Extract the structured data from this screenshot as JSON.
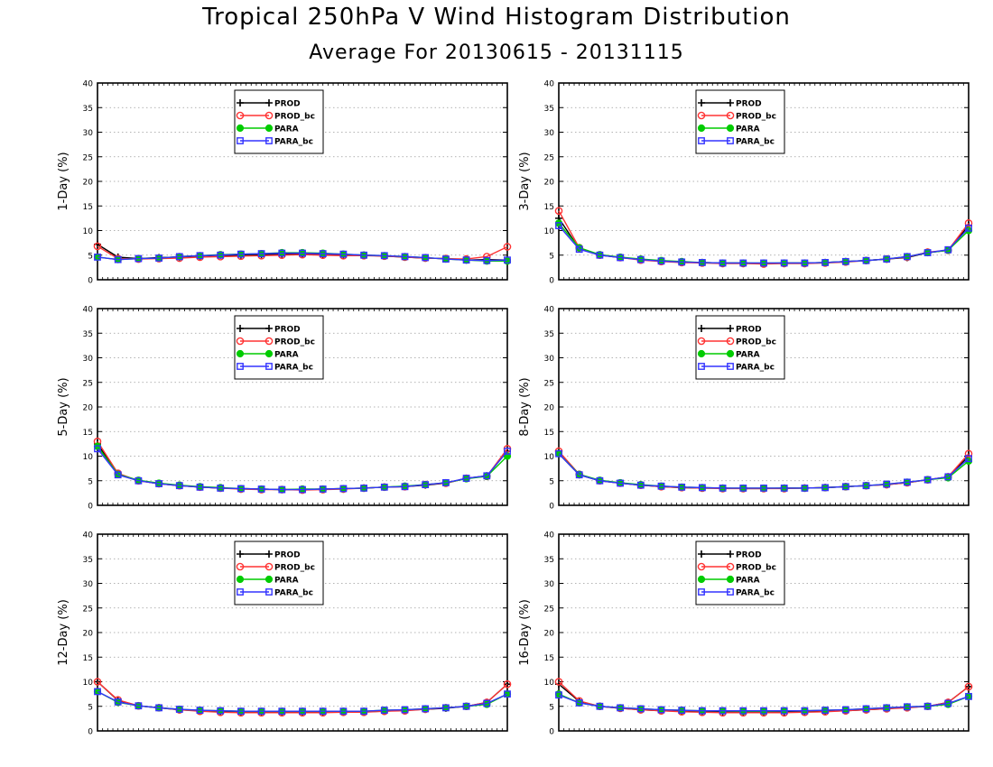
{
  "title": "Tropical 250hPa V Wind Histogram Distribution",
  "subtitle": "Average For 20130615 - 20131115",
  "colors": {
    "PROD": "#000000",
    "PROD_bc": "#ff3333",
    "PARA": "#00cc00",
    "PARA_bc": "#3333ff"
  },
  "chart_data": [
    {
      "type": "line",
      "ylabel": "1-Day (%)",
      "ylim": [
        0,
        40
      ],
      "yticks": [
        0,
        5,
        10,
        15,
        20,
        25,
        30,
        35,
        40
      ],
      "grid": true,
      "legend": "top-center",
      "x": [
        1,
        2,
        3,
        4,
        5,
        6,
        7,
        8,
        9,
        10,
        11,
        12,
        13,
        14,
        15,
        16,
        17,
        18,
        19,
        20,
        21
      ],
      "series": [
        {
          "name": "PROD",
          "values": [
            7.2,
            4.6,
            4.3,
            4.5,
            4.6,
            4.8,
            5.0,
            5.0,
            5.1,
            5.2,
            5.2,
            5.1,
            5.0,
            5.0,
            4.8,
            4.6,
            4.4,
            4.3,
            4.0,
            4.1,
            4.0
          ]
        },
        {
          "name": "PROD_bc",
          "values": [
            6.8,
            4.3,
            4.2,
            4.3,
            4.4,
            4.6,
            4.7,
            4.8,
            4.9,
            5.0,
            5.1,
            5.0,
            4.9,
            4.9,
            4.8,
            4.6,
            4.4,
            4.3,
            4.2,
            4.7,
            6.7
          ]
        },
        {
          "name": "PARA",
          "values": [
            4.6,
            4.1,
            4.3,
            4.4,
            4.7,
            4.9,
            5.1,
            5.2,
            5.3,
            5.5,
            5.5,
            5.4,
            5.2,
            5.0,
            4.9,
            4.7,
            4.5,
            4.2,
            4.0,
            3.8,
            3.8
          ]
        },
        {
          "name": "PARA_bc",
          "values": [
            4.6,
            4.1,
            4.3,
            4.4,
            4.7,
            4.9,
            5.0,
            5.2,
            5.3,
            5.4,
            5.4,
            5.3,
            5.2,
            5.0,
            4.9,
            4.7,
            4.5,
            4.2,
            4.0,
            3.9,
            4.0
          ]
        }
      ]
    },
    {
      "type": "line",
      "ylabel": "3-Day (%)",
      "ylim": [
        0,
        40
      ],
      "yticks": [
        0,
        5,
        10,
        15,
        20,
        25,
        30,
        35,
        40
      ],
      "grid": true,
      "legend": "top-center",
      "x": [
        1,
        2,
        3,
        4,
        5,
        6,
        7,
        8,
        9,
        10,
        11,
        12,
        13,
        14,
        15,
        16,
        17,
        18,
        19,
        20,
        21
      ],
      "series": [
        {
          "name": "PROD",
          "values": [
            12.5,
            6.3,
            5.0,
            4.5,
            4.1,
            3.8,
            3.6,
            3.5,
            3.4,
            3.4,
            3.3,
            3.4,
            3.4,
            3.5,
            3.7,
            3.9,
            4.2,
            4.5,
            5.5,
            6.0,
            11.0
          ]
        },
        {
          "name": "PROD_bc",
          "values": [
            14.0,
            6.5,
            5.0,
            4.5,
            4.0,
            3.7,
            3.5,
            3.4,
            3.3,
            3.3,
            3.2,
            3.3,
            3.3,
            3.4,
            3.6,
            3.9,
            4.2,
            4.6,
            5.6,
            6.0,
            11.5
          ]
        },
        {
          "name": "PARA",
          "values": [
            11.5,
            6.5,
            5.1,
            4.6,
            4.2,
            3.9,
            3.7,
            3.5,
            3.4,
            3.4,
            3.4,
            3.4,
            3.4,
            3.5,
            3.7,
            3.9,
            4.2,
            4.7,
            5.5,
            6.0,
            10.0
          ]
        },
        {
          "name": "PARA_bc",
          "values": [
            11.0,
            6.2,
            5.0,
            4.5,
            4.1,
            3.8,
            3.6,
            3.5,
            3.4,
            3.4,
            3.4,
            3.4,
            3.4,
            3.5,
            3.7,
            3.9,
            4.2,
            4.7,
            5.5,
            6.1,
            10.5
          ]
        }
      ]
    },
    {
      "type": "line",
      "ylabel": "5-Day (%)",
      "ylim": [
        0,
        40
      ],
      "yticks": [
        0,
        5,
        10,
        15,
        20,
        25,
        30,
        35,
        40
      ],
      "grid": true,
      "legend": "top-center",
      "x": [
        1,
        2,
        3,
        4,
        5,
        6,
        7,
        8,
        9,
        10,
        11,
        12,
        13,
        14,
        15,
        16,
        17,
        18,
        19,
        20,
        21
      ],
      "series": [
        {
          "name": "PROD",
          "values": [
            12.5,
            6.3,
            5.0,
            4.4,
            4.0,
            3.7,
            3.5,
            3.4,
            3.3,
            3.2,
            3.2,
            3.3,
            3.4,
            3.5,
            3.7,
            3.8,
            4.1,
            4.5,
            5.5,
            6.0,
            11.0
          ]
        },
        {
          "name": "PROD_bc",
          "values": [
            13.0,
            6.5,
            5.0,
            4.4,
            4.0,
            3.7,
            3.5,
            3.3,
            3.2,
            3.2,
            3.1,
            3.2,
            3.3,
            3.5,
            3.7,
            3.8,
            4.2,
            4.5,
            5.5,
            5.9,
            11.5
          ]
        },
        {
          "name": "PARA",
          "values": [
            12.0,
            6.3,
            5.1,
            4.5,
            4.1,
            3.8,
            3.6,
            3.4,
            3.3,
            3.2,
            3.3,
            3.3,
            3.4,
            3.5,
            3.7,
            3.9,
            4.2,
            4.6,
            5.4,
            5.9,
            10.0
          ]
        },
        {
          "name": "PARA_bc",
          "values": [
            11.5,
            6.2,
            5.0,
            4.4,
            4.0,
            3.7,
            3.5,
            3.4,
            3.3,
            3.2,
            3.2,
            3.3,
            3.4,
            3.5,
            3.7,
            3.8,
            4.2,
            4.6,
            5.5,
            6.0,
            11.0
          ]
        }
      ]
    },
    {
      "type": "line",
      "ylabel": "8-Day (%)",
      "ylim": [
        0,
        40
      ],
      "yticks": [
        0,
        5,
        10,
        15,
        20,
        25,
        30,
        35,
        40
      ],
      "grid": true,
      "legend": "top-center",
      "x": [
        1,
        2,
        3,
        4,
        5,
        6,
        7,
        8,
        9,
        10,
        11,
        12,
        13,
        14,
        15,
        16,
        17,
        18,
        19,
        20,
        21
      ],
      "series": [
        {
          "name": "PROD",
          "values": [
            10.5,
            6.2,
            5.0,
            4.5,
            4.1,
            3.8,
            3.6,
            3.5,
            3.5,
            3.4,
            3.4,
            3.5,
            3.5,
            3.6,
            3.8,
            4.0,
            4.2,
            4.6,
            5.2,
            5.8,
            10.0
          ]
        },
        {
          "name": "PROD_bc",
          "values": [
            11.0,
            6.3,
            5.0,
            4.5,
            4.1,
            3.8,
            3.6,
            3.5,
            3.4,
            3.4,
            3.4,
            3.4,
            3.5,
            3.6,
            3.8,
            4.0,
            4.2,
            4.6,
            5.2,
            5.8,
            10.5
          ]
        },
        {
          "name": "PARA",
          "values": [
            10.5,
            6.3,
            5.1,
            4.6,
            4.2,
            3.9,
            3.7,
            3.6,
            3.5,
            3.5,
            3.5,
            3.5,
            3.5,
            3.6,
            3.8,
            4.0,
            4.3,
            4.7,
            5.2,
            5.6,
            9.0
          ]
        },
        {
          "name": "PARA_bc",
          "values": [
            10.5,
            6.2,
            5.0,
            4.5,
            4.1,
            3.9,
            3.7,
            3.6,
            3.5,
            3.5,
            3.5,
            3.5,
            3.5,
            3.6,
            3.8,
            4.0,
            4.3,
            4.7,
            5.2,
            5.8,
            9.5
          ]
        }
      ]
    },
    {
      "type": "line",
      "ylabel": "12-Day (%)",
      "ylim": [
        0,
        40
      ],
      "yticks": [
        0,
        5,
        10,
        15,
        20,
        25,
        30,
        35,
        40
      ],
      "grid": true,
      "legend": "top-center",
      "x": [
        1,
        2,
        3,
        4,
        5,
        6,
        7,
        8,
        9,
        10,
        11,
        12,
        13,
        14,
        15,
        16,
        17,
        18,
        19,
        20,
        21
      ],
      "series": [
        {
          "name": "PROD",
          "values": [
            10.0,
            6.2,
            5.1,
            4.7,
            4.3,
            4.1,
            3.9,
            3.8,
            3.8,
            3.8,
            3.8,
            3.8,
            3.8,
            3.9,
            4.0,
            4.2,
            4.4,
            4.6,
            5.0,
            5.8,
            9.5
          ]
        },
        {
          "name": "PROD_bc",
          "values": [
            10.0,
            6.3,
            5.1,
            4.7,
            4.3,
            4.0,
            3.8,
            3.7,
            3.7,
            3.7,
            3.7,
            3.7,
            3.8,
            3.8,
            4.0,
            4.1,
            4.4,
            4.7,
            5.0,
            5.8,
            9.5
          ]
        },
        {
          "name": "PARA",
          "values": [
            8.0,
            5.8,
            5.1,
            4.7,
            4.4,
            4.2,
            4.1,
            4.0,
            4.0,
            4.0,
            4.0,
            4.0,
            4.0,
            4.0,
            4.2,
            4.3,
            4.5,
            4.7,
            5.0,
            5.4,
            7.5
          ]
        },
        {
          "name": "PARA_bc",
          "values": [
            8.0,
            5.9,
            5.1,
            4.7,
            4.4,
            4.2,
            4.1,
            4.0,
            4.0,
            4.0,
            4.0,
            4.0,
            4.0,
            4.0,
            4.2,
            4.3,
            4.5,
            4.7,
            5.0,
            5.6,
            7.5
          ]
        }
      ]
    },
    {
      "type": "line",
      "ylabel": "16-Day (%)",
      "ylim": [
        0,
        40
      ],
      "yticks": [
        0,
        5,
        10,
        15,
        20,
        25,
        30,
        35,
        40
      ],
      "grid": true,
      "legend": "top-center",
      "x": [
        1,
        2,
        3,
        4,
        5,
        6,
        7,
        8,
        9,
        10,
        11,
        12,
        13,
        14,
        15,
        16,
        17,
        18,
        19,
        20,
        21
      ],
      "series": [
        {
          "name": "PROD",
          "values": [
            9.5,
            6.0,
            5.0,
            4.6,
            4.3,
            4.1,
            4.0,
            3.9,
            3.8,
            3.8,
            3.8,
            3.8,
            3.9,
            4.0,
            4.1,
            4.3,
            4.5,
            4.8,
            5.0,
            5.8,
            9.0
          ]
        },
        {
          "name": "PROD_bc",
          "values": [
            10.0,
            6.1,
            5.0,
            4.6,
            4.3,
            4.1,
            3.9,
            3.8,
            3.7,
            3.7,
            3.7,
            3.7,
            3.8,
            3.9,
            4.1,
            4.3,
            4.5,
            4.7,
            5.0,
            5.8,
            9.0
          ]
        },
        {
          "name": "PARA",
          "values": [
            7.5,
            5.7,
            5.0,
            4.7,
            4.5,
            4.3,
            4.2,
            4.1,
            4.1,
            4.0,
            4.0,
            4.1,
            4.1,
            4.2,
            4.3,
            4.5,
            4.7,
            4.9,
            5.0,
            5.4,
            7.0
          ]
        },
        {
          "name": "PARA_bc",
          "values": [
            7.3,
            5.7,
            5.0,
            4.7,
            4.5,
            4.3,
            4.2,
            4.1,
            4.1,
            4.1,
            4.1,
            4.1,
            4.1,
            4.2,
            4.3,
            4.5,
            4.7,
            4.9,
            5.0,
            5.6,
            7.0
          ]
        }
      ]
    }
  ]
}
